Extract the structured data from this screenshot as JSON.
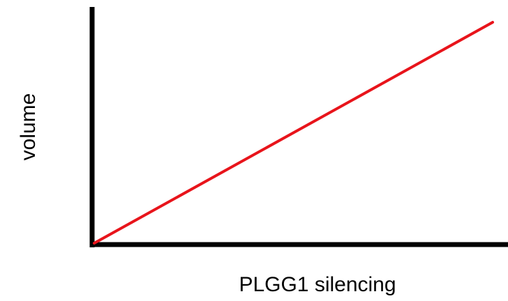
{
  "chart_data": {
    "type": "line",
    "x_label": "PLGG1 silencing",
    "y_label": "volume",
    "color": "#e8141b"
  }
}
